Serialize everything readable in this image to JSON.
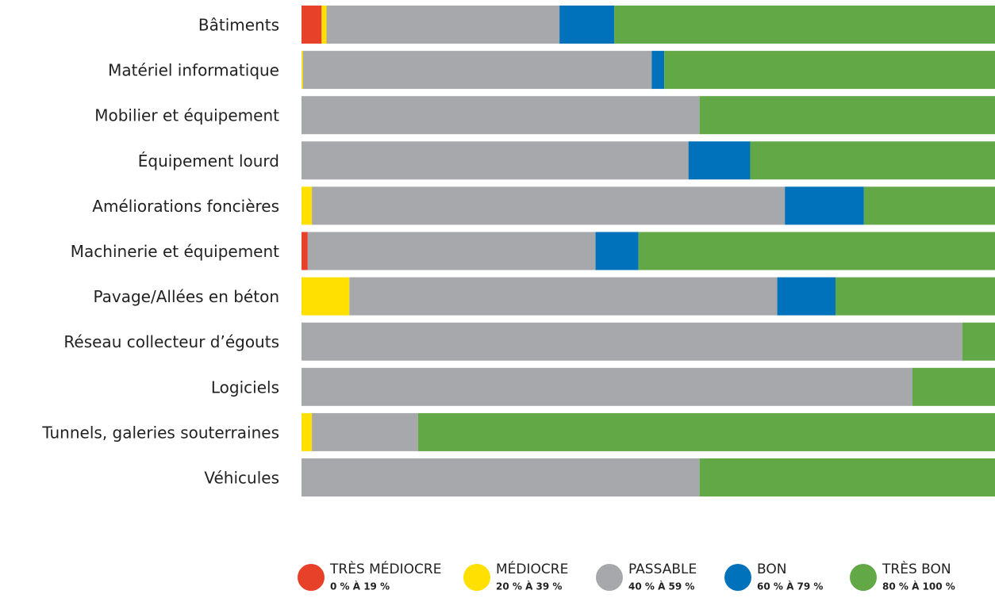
{
  "chart_data": {
    "type": "stacked-bar-horizontal",
    "categories": [
      "Bâtiments",
      "Matériel informatique",
      "Mobilier et équipement",
      "Équipement lourd",
      "Améliorations foncières",
      "Machinerie et équipement",
      "Pavage/Allées en béton",
      "Réseau collecteur d’égouts",
      "Logiciels",
      "Tunnels, galeries souterraines",
      "Véhicules"
    ],
    "xlim": [
      0,
      100
    ],
    "series": [
      {
        "name": "TRÈS MÉDIOCRE",
        "range": "0 % À 19 %",
        "color": "#e8412a",
        "values": [
          2.9,
          0,
          0,
          0,
          0,
          0.9,
          0,
          0,
          0,
          0,
          0
        ]
      },
      {
        "name": "MÉDIOCRE",
        "range": "20 % À 39 %",
        "color": "#ffe000",
        "values": [
          0.7,
          0.2,
          0,
          0,
          1.5,
          0,
          6.9,
          0,
          0,
          1.5,
          0
        ]
      },
      {
        "name": "PASSABLE",
        "range": "40 % À 59 %",
        "color": "#a7a8ab",
        "values": [
          33.6,
          50.3,
          57.4,
          55.8,
          68.2,
          41.5,
          61.7,
          95.3,
          88.1,
          15.3,
          57.4
        ]
      },
      {
        "name": "BON",
        "range": "60 % À 79 %",
        "color": "#0072bc",
        "values": [
          7.9,
          1.8,
          0,
          8.9,
          11.4,
          6.2,
          8.4,
          0,
          0,
          0,
          0
        ]
      },
      {
        "name": "TRÈS BON",
        "range": "80 % À 100 %",
        "color": "#62a846",
        "values": [
          54.9,
          47.7,
          42.6,
          35.3,
          18.9,
          51.4,
          23.0,
          4.7,
          11.9,
          83.2,
          42.6
        ]
      }
    ]
  }
}
